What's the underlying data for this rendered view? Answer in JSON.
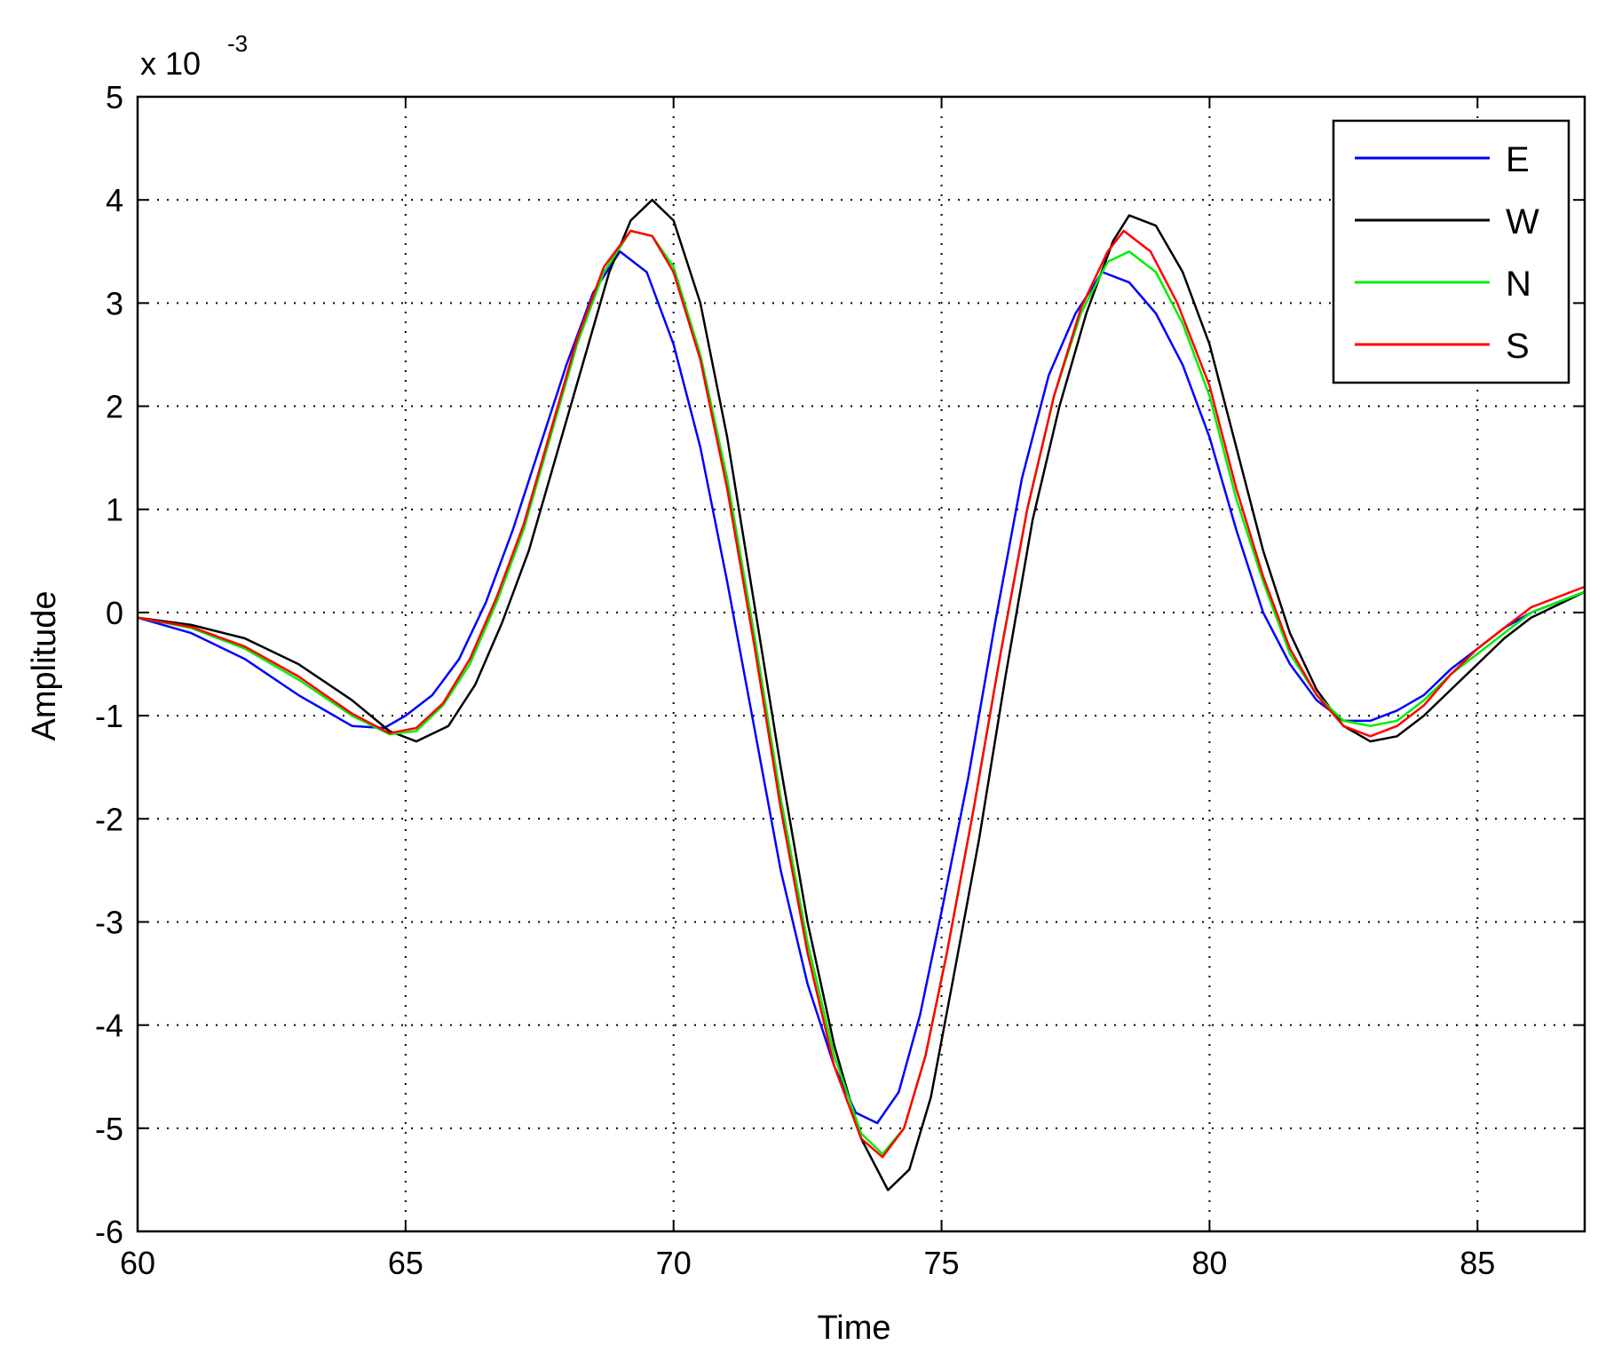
{
  "chart_data": {
    "type": "line",
    "title": "",
    "xlabel": "Time",
    "ylabel": "Amplitude",
    "y_multiplier_base": "x 10",
    "y_multiplier_exp": "-3",
    "xlim": [
      60,
      87
    ],
    "ylim": [
      -6,
      5
    ],
    "x_ticks": [
      60,
      65,
      70,
      75,
      80,
      85
    ],
    "y_ticks": [
      5,
      4,
      3,
      2,
      1,
      0,
      -1,
      -2,
      -3,
      -4,
      -5,
      -6
    ],
    "grid": true,
    "legend_position": "top-right",
    "series": [
      {
        "name": "E",
        "color": "#0000ff",
        "points": [
          [
            60,
            -0.05
          ],
          [
            61,
            -0.2
          ],
          [
            62,
            -0.45
          ],
          [
            63,
            -0.8
          ],
          [
            64,
            -1.1
          ],
          [
            64.6,
            -1.12
          ],
          [
            65,
            -1.0
          ],
          [
            65.5,
            -0.8
          ],
          [
            66,
            -0.45
          ],
          [
            66.5,
            0.1
          ],
          [
            67,
            0.8
          ],
          [
            67.5,
            1.6
          ],
          [
            68,
            2.4
          ],
          [
            68.5,
            3.1
          ],
          [
            69,
            3.5
          ],
          [
            69.5,
            3.3
          ],
          [
            70,
            2.6
          ],
          [
            70.5,
            1.6
          ],
          [
            71,
            0.3
          ],
          [
            71.5,
            -1.1
          ],
          [
            72,
            -2.5
          ],
          [
            72.5,
            -3.6
          ],
          [
            73,
            -4.4
          ],
          [
            73.4,
            -4.85
          ],
          [
            73.8,
            -4.95
          ],
          [
            74.2,
            -4.65
          ],
          [
            74.6,
            -3.9
          ],
          [
            75,
            -2.9
          ],
          [
            75.5,
            -1.6
          ],
          [
            76,
            -0.1
          ],
          [
            76.5,
            1.3
          ],
          [
            77,
            2.3
          ],
          [
            77.5,
            2.9
          ],
          [
            78,
            3.3
          ],
          [
            78.5,
            3.2
          ],
          [
            79,
            2.9
          ],
          [
            79.5,
            2.4
          ],
          [
            80,
            1.7
          ],
          [
            80.5,
            0.8
          ],
          [
            81,
            0.0
          ],
          [
            81.5,
            -0.5
          ],
          [
            82,
            -0.85
          ],
          [
            82.5,
            -1.05
          ],
          [
            83,
            -1.05
          ],
          [
            83.5,
            -0.95
          ],
          [
            84,
            -0.8
          ],
          [
            84.5,
            -0.55
          ],
          [
            85,
            -0.35
          ],
          [
            85.5,
            -0.15
          ],
          [
            86,
            0.0
          ],
          [
            87,
            0.2
          ]
        ]
      },
      {
        "name": "W",
        "color": "#000000",
        "points": [
          [
            60,
            -0.05
          ],
          [
            61,
            -0.12
          ],
          [
            62,
            -0.25
          ],
          [
            63,
            -0.5
          ],
          [
            64,
            -0.85
          ],
          [
            64.7,
            -1.15
          ],
          [
            65.2,
            -1.25
          ],
          [
            65.8,
            -1.1
          ],
          [
            66.3,
            -0.7
          ],
          [
            66.8,
            -0.1
          ],
          [
            67.3,
            0.6
          ],
          [
            67.8,
            1.5
          ],
          [
            68.3,
            2.4
          ],
          [
            68.8,
            3.3
          ],
          [
            69.2,
            3.8
          ],
          [
            69.6,
            4.0
          ],
          [
            70,
            3.8
          ],
          [
            70.5,
            3.0
          ],
          [
            71,
            1.7
          ],
          [
            71.5,
            0.1
          ],
          [
            72,
            -1.5
          ],
          [
            72.5,
            -3.0
          ],
          [
            73,
            -4.2
          ],
          [
            73.5,
            -5.1
          ],
          [
            74,
            -5.6
          ],
          [
            74.4,
            -5.4
          ],
          [
            74.8,
            -4.7
          ],
          [
            75.2,
            -3.6
          ],
          [
            75.7,
            -2.2
          ],
          [
            76.2,
            -0.6
          ],
          [
            76.7,
            0.9
          ],
          [
            77.2,
            2.0
          ],
          [
            77.7,
            2.9
          ],
          [
            78.2,
            3.6
          ],
          [
            78.5,
            3.85
          ],
          [
            79,
            3.75
          ],
          [
            79.5,
            3.3
          ],
          [
            80,
            2.6
          ],
          [
            80.5,
            1.6
          ],
          [
            81,
            0.6
          ],
          [
            81.5,
            -0.2
          ],
          [
            82,
            -0.75
          ],
          [
            82.5,
            -1.1
          ],
          [
            83,
            -1.25
          ],
          [
            83.5,
            -1.2
          ],
          [
            84,
            -1.0
          ],
          [
            84.5,
            -0.75
          ],
          [
            85,
            -0.5
          ],
          [
            85.5,
            -0.25
          ],
          [
            86,
            -0.05
          ],
          [
            87,
            0.2
          ]
        ]
      },
      {
        "name": "N",
        "color": "#00ee00",
        "points": [
          [
            60,
            -0.05
          ],
          [
            61,
            -0.15
          ],
          [
            62,
            -0.35
          ],
          [
            63,
            -0.65
          ],
          [
            64,
            -1.0
          ],
          [
            64.7,
            -1.18
          ],
          [
            65.2,
            -1.15
          ],
          [
            65.7,
            -0.9
          ],
          [
            66.2,
            -0.5
          ],
          [
            66.7,
            0.1
          ],
          [
            67.2,
            0.8
          ],
          [
            67.7,
            1.7
          ],
          [
            68.2,
            2.6
          ],
          [
            68.7,
            3.3
          ],
          [
            69.2,
            3.7
          ],
          [
            69.6,
            3.65
          ],
          [
            70,
            3.35
          ],
          [
            70.5,
            2.5
          ],
          [
            71,
            1.3
          ],
          [
            71.5,
            -0.2
          ],
          [
            72,
            -1.8
          ],
          [
            72.5,
            -3.2
          ],
          [
            73,
            -4.3
          ],
          [
            73.5,
            -5.05
          ],
          [
            73.9,
            -5.25
          ],
          [
            74.3,
            -5.0
          ],
          [
            74.7,
            -4.3
          ],
          [
            75.1,
            -3.3
          ],
          [
            75.6,
            -1.9
          ],
          [
            76.1,
            -0.4
          ],
          [
            76.6,
            1.0
          ],
          [
            77.1,
            2.1
          ],
          [
            77.6,
            2.9
          ],
          [
            78.1,
            3.4
          ],
          [
            78.5,
            3.5
          ],
          [
            79,
            3.3
          ],
          [
            79.5,
            2.8
          ],
          [
            80,
            2.1
          ],
          [
            80.5,
            1.1
          ],
          [
            81,
            0.3
          ],
          [
            81.5,
            -0.4
          ],
          [
            82,
            -0.8
          ],
          [
            82.5,
            -1.05
          ],
          [
            83,
            -1.1
          ],
          [
            83.5,
            -1.05
          ],
          [
            84,
            -0.85
          ],
          [
            84.5,
            -0.6
          ],
          [
            85,
            -0.4
          ],
          [
            85.5,
            -0.2
          ],
          [
            86,
            0.0
          ],
          [
            87,
            0.2
          ]
        ]
      },
      {
        "name": "S",
        "color": "#ff0000",
        "points": [
          [
            60,
            -0.05
          ],
          [
            61,
            -0.14
          ],
          [
            62,
            -0.33
          ],
          [
            63,
            -0.62
          ],
          [
            64,
            -0.98
          ],
          [
            64.7,
            -1.17
          ],
          [
            65.2,
            -1.12
          ],
          [
            65.7,
            -0.88
          ],
          [
            66.2,
            -0.45
          ],
          [
            66.7,
            0.15
          ],
          [
            67.2,
            0.85
          ],
          [
            67.7,
            1.75
          ],
          [
            68.2,
            2.65
          ],
          [
            68.7,
            3.35
          ],
          [
            69.2,
            3.7
          ],
          [
            69.6,
            3.65
          ],
          [
            70,
            3.3
          ],
          [
            70.5,
            2.45
          ],
          [
            71,
            1.2
          ],
          [
            71.5,
            -0.3
          ],
          [
            72,
            -1.9
          ],
          [
            72.5,
            -3.3
          ],
          [
            73,
            -4.4
          ],
          [
            73.5,
            -5.1
          ],
          [
            73.9,
            -5.28
          ],
          [
            74.3,
            -5.0
          ],
          [
            74.7,
            -4.3
          ],
          [
            75.1,
            -3.3
          ],
          [
            75.6,
            -1.9
          ],
          [
            76.1,
            -0.4
          ],
          [
            76.6,
            1.0
          ],
          [
            77.1,
            2.1
          ],
          [
            77.6,
            2.95
          ],
          [
            78.1,
            3.5
          ],
          [
            78.4,
            3.7
          ],
          [
            78.9,
            3.5
          ],
          [
            79.4,
            3.0
          ],
          [
            80,
            2.2
          ],
          [
            80.5,
            1.2
          ],
          [
            81,
            0.35
          ],
          [
            81.5,
            -0.35
          ],
          [
            82,
            -0.8
          ],
          [
            82.5,
            -1.1
          ],
          [
            83,
            -1.2
          ],
          [
            83.5,
            -1.1
          ],
          [
            84,
            -0.9
          ],
          [
            84.5,
            -0.6
          ],
          [
            85,
            -0.35
          ],
          [
            85.5,
            -0.15
          ],
          [
            86,
            0.05
          ],
          [
            87,
            0.25
          ]
        ]
      }
    ]
  }
}
